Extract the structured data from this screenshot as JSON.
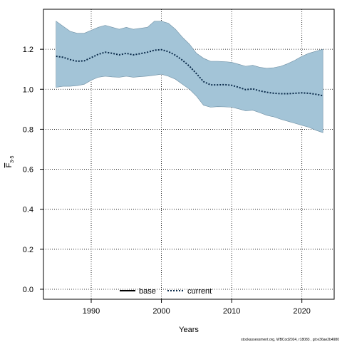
{
  "chart_data": {
    "type": "line",
    "title": "",
    "xlabel": "Years",
    "ylabel_main": "F",
    "ylabel_sub": "3-5",
    "xlim": [
      1983.2,
      2024.6
    ],
    "ylim": [
      -0.05,
      1.4
    ],
    "x_ticks": [
      1990,
      2000,
      2010,
      2020
    ],
    "x_tick_labels": [
      "1990",
      "2000",
      "2010",
      "2020"
    ],
    "y_ticks": [
      0.0,
      0.2,
      0.4,
      0.6,
      0.8,
      1.0,
      1.2
    ],
    "y_tick_labels": [
      "0.0",
      "0.2",
      "0.4",
      "0.6",
      "0.8",
      "1.0",
      "1.2"
    ],
    "grid": true,
    "legend_position": "bottom",
    "series": [
      {
        "name": "base",
        "style": "solid",
        "color": "#000000",
        "x": [],
        "y": []
      },
      {
        "name": "current",
        "style": "dotted",
        "color": "#0a2a4a",
        "band_color": "#a3c4d7",
        "x": [
          1985,
          1986,
          1987,
          1988,
          1989,
          1990,
          1991,
          1992,
          1993,
          1994,
          1995,
          1996,
          1997,
          1998,
          1999,
          2000,
          2001,
          2002,
          2003,
          2004,
          2005,
          2006,
          2007,
          2008,
          2009,
          2010,
          2011,
          2012,
          2013,
          2014,
          2015,
          2016,
          2017,
          2018,
          2019,
          2020,
          2021,
          2022,
          2023
        ],
        "y": [
          1.165,
          1.16,
          1.148,
          1.14,
          1.142,
          1.158,
          1.175,
          1.185,
          1.18,
          1.172,
          1.18,
          1.172,
          1.178,
          1.185,
          1.195,
          1.198,
          1.188,
          1.17,
          1.145,
          1.115,
          1.078,
          1.038,
          1.022,
          1.022,
          1.023,
          1.02,
          1.01,
          0.998,
          1.002,
          0.992,
          0.985,
          0.98,
          0.978,
          0.978,
          0.98,
          0.982,
          0.98,
          0.975,
          0.968
        ],
        "lower": [
          1.01,
          1.015,
          1.015,
          1.018,
          1.025,
          1.045,
          1.06,
          1.065,
          1.062,
          1.06,
          1.065,
          1.06,
          1.063,
          1.066,
          1.07,
          1.075,
          1.065,
          1.05,
          1.025,
          1.0,
          0.965,
          0.92,
          0.91,
          0.913,
          0.912,
          0.91,
          0.902,
          0.892,
          0.895,
          0.883,
          0.87,
          0.862,
          0.85,
          0.84,
          0.83,
          0.82,
          0.81,
          0.795,
          0.783
        ],
        "upper": [
          1.34,
          1.315,
          1.29,
          1.28,
          1.28,
          1.295,
          1.31,
          1.32,
          1.31,
          1.3,
          1.31,
          1.3,
          1.305,
          1.31,
          1.34,
          1.34,
          1.33,
          1.3,
          1.26,
          1.225,
          1.18,
          1.155,
          1.14,
          1.14,
          1.138,
          1.135,
          1.125,
          1.115,
          1.12,
          1.11,
          1.105,
          1.108,
          1.115,
          1.128,
          1.145,
          1.165,
          1.18,
          1.19,
          1.2
        ]
      }
    ]
  },
  "footer": "stockassessment.org, WBCod2024, r18083 , git:e36ae2b4980"
}
